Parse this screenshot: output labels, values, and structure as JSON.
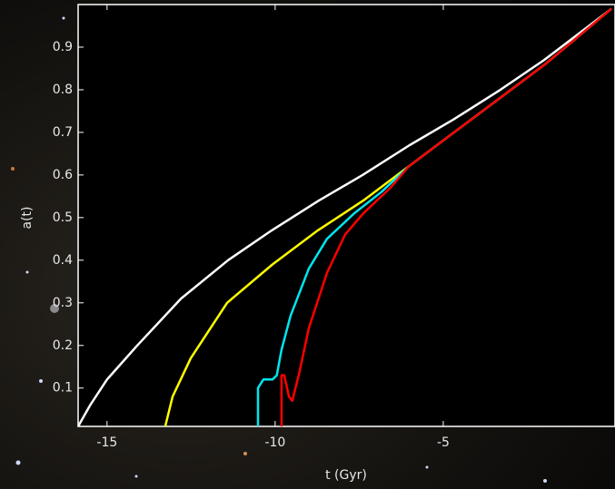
{
  "chart_data": {
    "type": "line",
    "xlabel": "t (Gyr)",
    "ylabel": "a(t)",
    "xlim": [
      -15.86,
      0
    ],
    "ylim": [
      0.01,
      1.0
    ],
    "xticks": [
      -15,
      -10,
      -5
    ],
    "yticks": [
      0.1,
      0.2,
      0.3,
      0.4,
      0.5,
      0.6,
      0.7,
      0.8,
      0.9
    ],
    "series": [
      {
        "color": "#ffffff",
        "x": [
          -15.86,
          -15.5,
          -15.0,
          -14.1,
          -12.8,
          -11.4,
          -10.1,
          -8.7,
          -7.4,
          -6.0,
          -4.7,
          -3.3,
          -2.0,
          0
        ],
        "values": [
          0.01,
          0.06,
          0.12,
          0.2,
          0.31,
          0.4,
          0.47,
          0.54,
          0.6,
          0.67,
          0.73,
          0.8,
          0.87,
          0.99
        ]
      },
      {
        "color": "#ffff00",
        "x": [
          -13.27,
          -13.05,
          -12.51,
          -11.43,
          -10.08,
          -8.73,
          -7.38,
          -6.03,
          -4.68,
          -3.32,
          -1.97,
          0
        ],
        "values": [
          0.01,
          0.08,
          0.17,
          0.3,
          0.39,
          0.47,
          0.54,
          0.62,
          0.7,
          0.78,
          0.86,
          0.99
        ]
      },
      {
        "color": "#00e5ee",
        "x": [
          -10.51,
          -10.51,
          -10.35,
          -10.08,
          -9.95,
          -9.81,
          -9.54,
          -9.0,
          -8.46,
          -7.65,
          -6.84,
          -6.03,
          -4.68,
          -1.97,
          0
        ],
        "values": [
          0.01,
          0.1,
          0.12,
          0.12,
          0.13,
          0.19,
          0.27,
          0.38,
          0.45,
          0.51,
          0.56,
          0.62,
          0.7,
          0.86,
          0.99
        ]
      },
      {
        "color": "#ff0000",
        "x": [
          -9.81,
          -9.81,
          -9.73,
          -9.59,
          -9.49,
          -9.27,
          -9.0,
          -8.46,
          -7.92,
          -7.38,
          -6.57,
          -6.03,
          -4.68,
          -1.97,
          0
        ],
        "values": [
          0.01,
          0.13,
          0.13,
          0.08,
          0.07,
          0.14,
          0.24,
          0.37,
          0.46,
          0.51,
          0.57,
          0.62,
          0.7,
          0.86,
          0.99
        ]
      }
    ]
  }
}
